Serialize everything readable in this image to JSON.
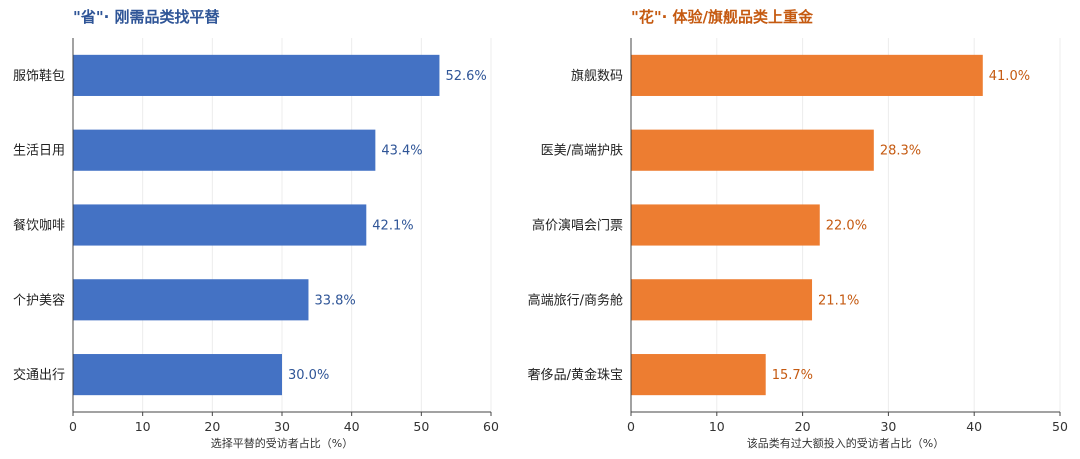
{
  "chart_data": [
    {
      "type": "bar",
      "orientation": "horizontal",
      "title": "\"省\"· 刚需品类找平替",
      "categories": [
        "服饰鞋包",
        "生活日用",
        "餐饮咖啡",
        "个护美容",
        "交通出行"
      ],
      "values": [
        52.6,
        43.4,
        42.1,
        33.8,
        30.0
      ],
      "value_labels": [
        "52.6%",
        "43.4%",
        "42.1%",
        "33.8%",
        "30.0%"
      ],
      "xlabel": "选择平替的受访者占比（%）",
      "ylabel": "",
      "xlim": [
        0,
        60
      ],
      "xticks": [
        0,
        10,
        20,
        30,
        40,
        50,
        60
      ],
      "xtick_labels": [
        "0",
        "10",
        "20",
        "30",
        "40",
        "50",
        "60"
      ],
      "grid": true,
      "color": "#4472C4",
      "label_color": "#2F5597"
    },
    {
      "type": "bar",
      "orientation": "horizontal",
      "title": "\"花\"· 体验/旗舰品类上重金",
      "categories": [
        "旗舰数码",
        "医美/高端护肤",
        "高价演唱会门票",
        "高端旅行/商务舱",
        "奢侈品/黄金珠宝"
      ],
      "values": [
        41.0,
        28.3,
        22.0,
        21.1,
        15.7
      ],
      "value_labels": [
        "41.0%",
        "28.3%",
        "22.0%",
        "21.1%",
        "15.7%"
      ],
      "xlabel": "该品类有过大额投入的受访者占比（%）",
      "ylabel": "",
      "xlim": [
        0,
        50
      ],
      "xticks": [
        0,
        10,
        20,
        30,
        40,
        50
      ],
      "xtick_labels": [
        "0",
        "10",
        "20",
        "30",
        "40",
        "50"
      ],
      "grid": true,
      "color": "#ED7D31",
      "label_color": "#C55A11"
    }
  ]
}
